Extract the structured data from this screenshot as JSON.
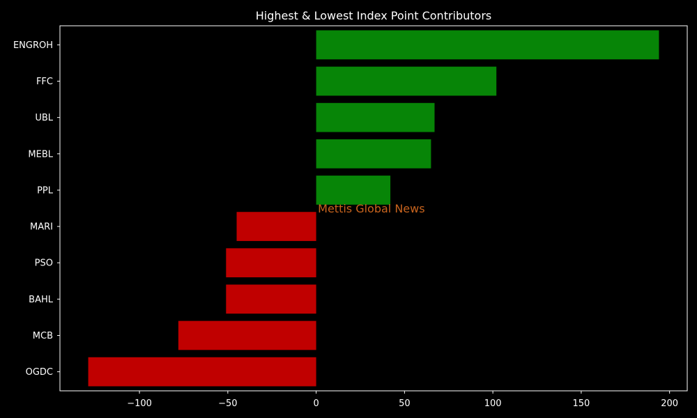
{
  "chart_data": {
    "type": "bar",
    "orientation": "horizontal",
    "title": "Highest & Lowest Index Point Contributors",
    "xlabel": "",
    "ylabel": "",
    "categories": [
      "ENGROH",
      "FFC",
      "UBL",
      "MEBL",
      "PPL",
      "MARI",
      "PSO",
      "BAHL",
      "MCB",
      "OGDC"
    ],
    "values": [
      194,
      102,
      67,
      65,
      42,
      -45,
      -51,
      -51,
      -78,
      -129
    ],
    "xlim": [
      -145,
      210
    ],
    "xticks": [
      -100,
      -50,
      0,
      50,
      100,
      150,
      200
    ],
    "xtick_labels": [
      "−100",
      "−50",
      "0",
      "50",
      "100",
      "150",
      "200"
    ],
    "grid": false,
    "legend": "none",
    "colors": {
      "background": "#000000",
      "positive": "#078507",
      "negative": "#c00000",
      "axis": "#ffffff",
      "text": "#ffffff",
      "watermark": "#c8641e"
    },
    "annotations": [
      {
        "text": "Mettis Global News",
        "x": 1,
        "y": "PPL/MARI"
      }
    ]
  }
}
